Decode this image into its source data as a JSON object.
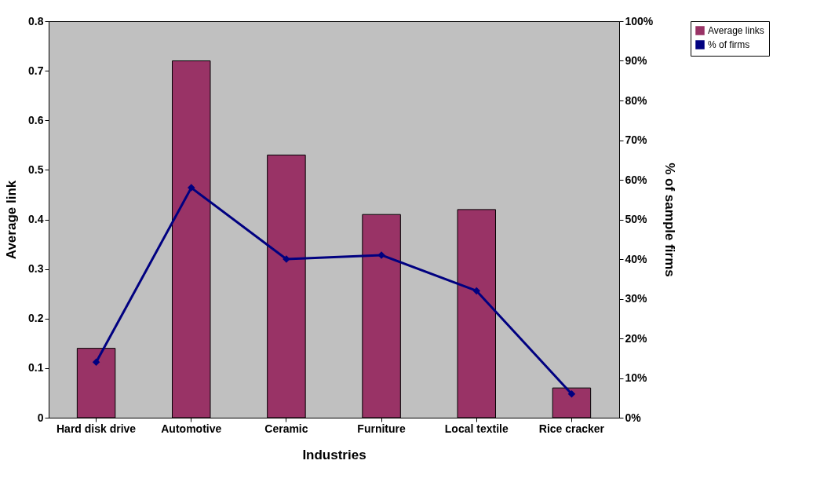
{
  "chart_data": {
    "type": "bar",
    "xlabel": "Industries",
    "ylabel": "Average link",
    "y2label": "% of sample firms",
    "categories": [
      "Hard disk drive",
      "Automotive",
      "Ceramic",
      "Furniture",
      "Local textile",
      "Rice cracker"
    ],
    "series": [
      {
        "name": "Average links",
        "color": "#993366",
        "values": [
          0.14,
          0.72,
          0.53,
          0.41,
          0.42,
          0.06
        ]
      },
      {
        "name": "% of firms",
        "type": "line",
        "axis": "y2",
        "color": "#000080",
        "marker": "diamond",
        "values": [
          14,
          58,
          40,
          41,
          32,
          6
        ]
      }
    ],
    "ylim": [
      0,
      0.8
    ],
    "yticks": [
      0,
      0.1,
      0.2,
      0.3,
      0.4,
      0.5,
      0.6,
      0.7,
      0.8
    ],
    "y2lim": [
      0,
      100
    ],
    "y2ticks": [
      {
        "value": 0,
        "label": "0%"
      },
      {
        "value": 10,
        "label": "10%"
      },
      {
        "value": 20,
        "label": "20%"
      },
      {
        "value": 30,
        "label": "30%"
      },
      {
        "value": 40,
        "label": "40%"
      },
      {
        "value": 50,
        "label": "50%"
      },
      {
        "value": 60,
        "label": "60%"
      },
      {
        "value": 70,
        "label": "70%"
      },
      {
        "value": 80,
        "label": "80%"
      },
      {
        "value": 90,
        "label": "90%"
      },
      {
        "value": 100,
        "label": "100%"
      }
    ],
    "legend": "right"
  }
}
